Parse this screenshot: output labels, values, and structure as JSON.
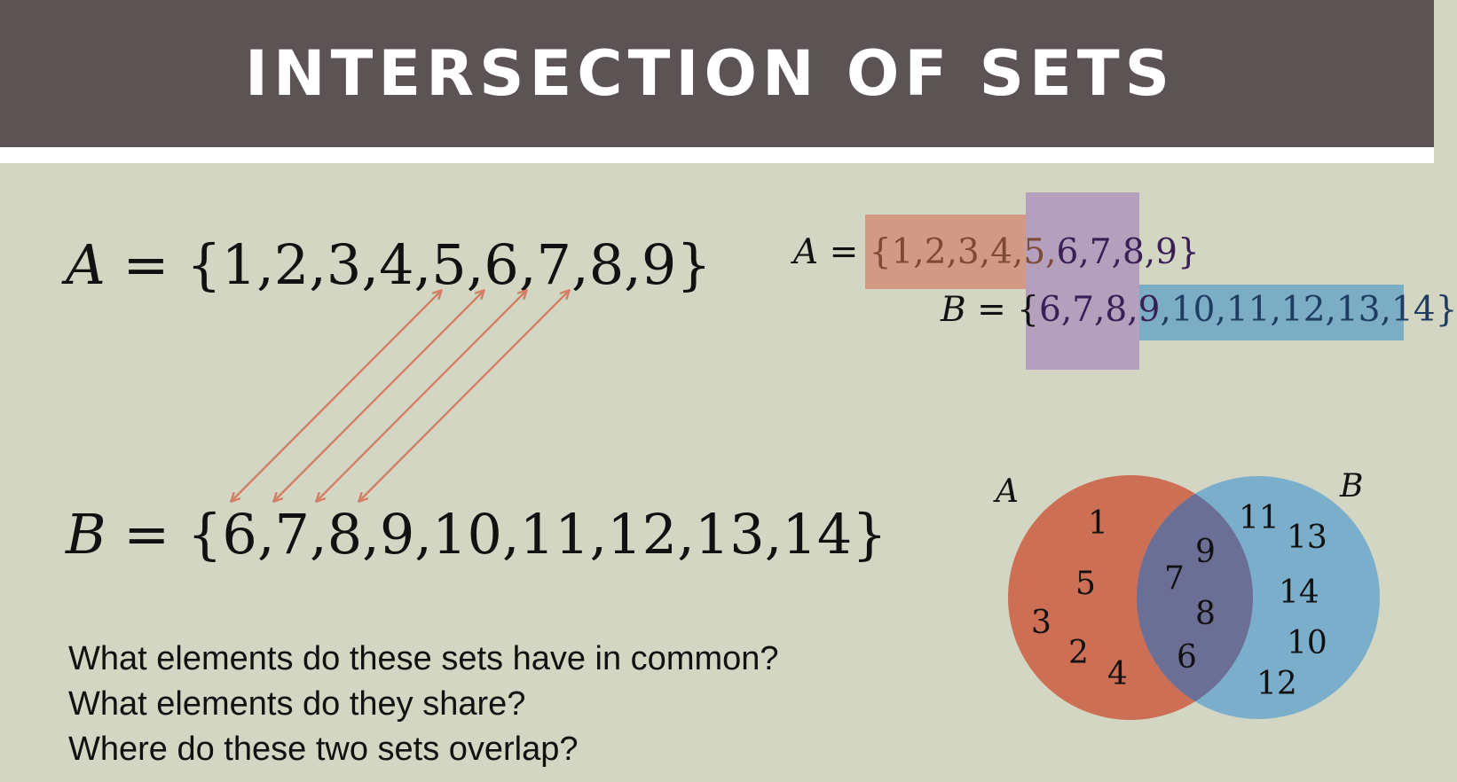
{
  "header": {
    "title": "INTERSECTION OF SETS"
  },
  "equations": {
    "a_var": "A",
    "b_var": "B",
    "equals": "=",
    "a_set": "{1,2,3,4,5,6,7,8,9}",
    "b_set": "{6,7,8,9,10,11,12,13,14}"
  },
  "highlighted": {
    "a_var": "A",
    "b_var": "B",
    "equals": "=",
    "a_only": "{1,2,3,4,5,",
    "a_common": "6,7,8,9}",
    "b_open": "{",
    "b_common": "6,7,8,9",
    "b_only": ",10,11,12,13,14}"
  },
  "questions": [
    "What elements do these sets have in common?",
    "What elements do they share?",
    "Where do these two sets overlap?"
  ],
  "venn": {
    "label_a": "A",
    "label_b": "B",
    "a_only": [
      "1",
      "5",
      "3",
      "2",
      "4"
    ],
    "both": [
      "9",
      "7",
      "8",
      "6"
    ],
    "b_only": [
      "11",
      "13",
      "14",
      "10",
      "12"
    ]
  },
  "colors": {
    "header_bg": "#5c5355",
    "slide_bg": "#d3d6c2",
    "arrow": "#d37f68",
    "circle_a": "#cc6f55",
    "circle_b": "#7aaecb",
    "overlap": "#6b6f95"
  }
}
